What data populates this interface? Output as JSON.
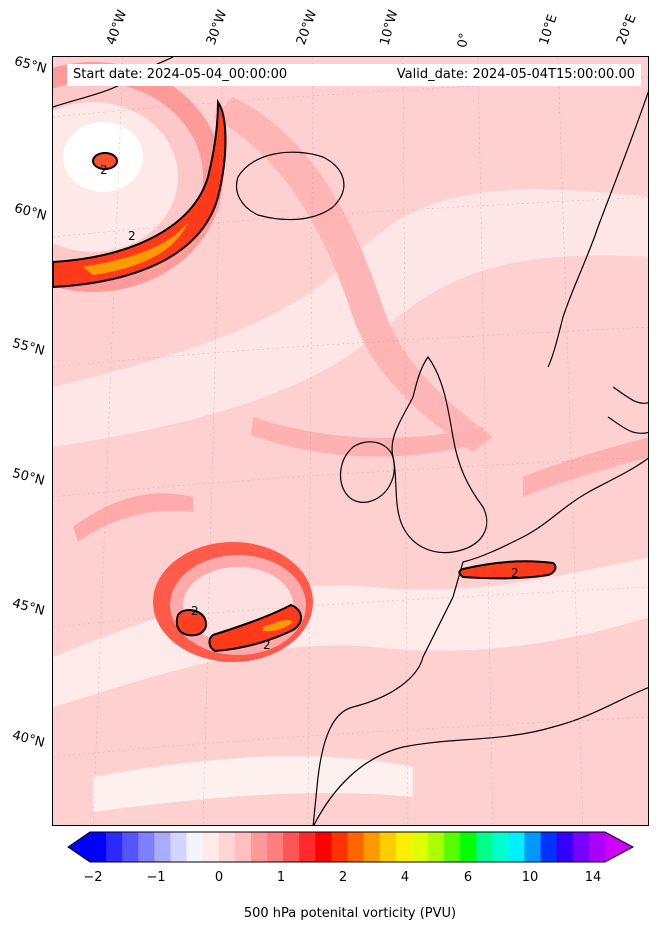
{
  "header": {
    "start_date": "Start date: 2024-05-04_00:00:00",
    "valid_date": "Valid_date: 2024-05-04T15:00:00.00"
  },
  "longitude_labels": [
    "40°W",
    "30°W",
    "20°W",
    "10°W",
    "0°",
    "10°E",
    "20°E"
  ],
  "latitude_labels": [
    "65°N",
    "60°N",
    "55°N",
    "50°N",
    "45°N",
    "40°N"
  ],
  "contour_labels": [
    "2",
    "2",
    "2",
    "2",
    "2"
  ],
  "colorbar": {
    "label": "500 hPa potenital vorticity (PVU)",
    "ticks": [
      "−2",
      "−1",
      "0",
      "1",
      "2",
      "4",
      "6",
      "10",
      "14"
    ],
    "colors": [
      "#0000ff",
      "#2a2aff",
      "#5555ff",
      "#7f7fff",
      "#aaaaff",
      "#d4d4ff",
      "#f4f4ff",
      "#ffeaea",
      "#ffd4d4",
      "#ffbfbf",
      "#ff9999",
      "#ff7f7f",
      "#ff5555",
      "#ff2a2a",
      "#ff0000",
      "#ff3300",
      "#ff6600",
      "#ff9900",
      "#ffcc00",
      "#ffee00",
      "#ddff00",
      "#aaff00",
      "#55ff00",
      "#00ff00",
      "#00ff88",
      "#00ffcc",
      "#00eeff",
      "#0099ff",
      "#0033ff",
      "#3300ff",
      "#7700ff",
      "#aa00ff"
    ]
  }
}
